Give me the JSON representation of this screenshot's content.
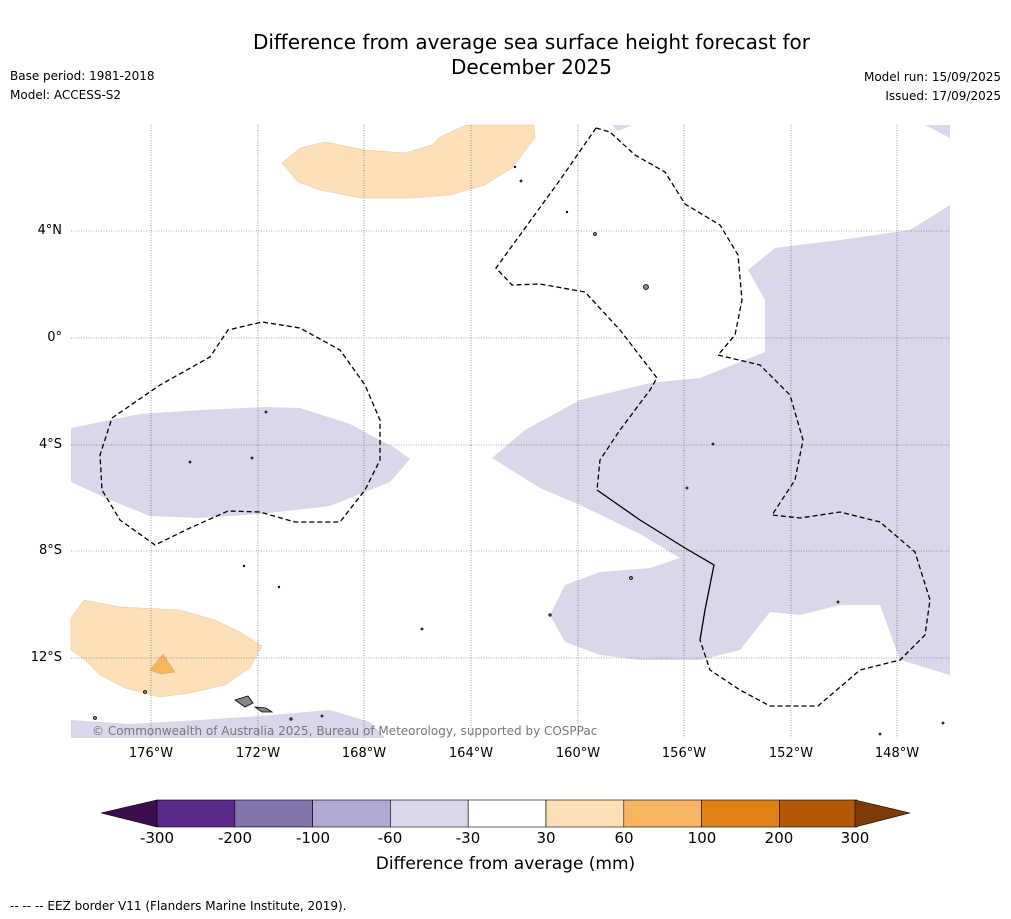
{
  "title_line1": "Difference from average sea surface height forecast for",
  "title_line2": "December 2025",
  "base_period": "Base period: 1981-2018",
  "model": "Model: ACCESS-S2",
  "model_run": "Model run: 15/09/2025",
  "issued": "Issued: 17/09/2025",
  "lat_labels": [
    "4°N",
    "0°",
    "4°S",
    "8°S",
    "12°S"
  ],
  "lon_labels": [
    "176°W",
    "172°W",
    "168°W",
    "164°W",
    "160°W",
    "156°W",
    "152°W",
    "148°W"
  ],
  "copyright": "© Commonwealth of Australia 2025, Bureau of Meteorology, supported by COSPPac",
  "colorbar": {
    "title": "Difference from average (mm)",
    "ticks": [
      "-300",
      "-200",
      "-100",
      "-60",
      "-30",
      "30",
      "60",
      "100",
      "200",
      "300"
    ],
    "colors": [
      "#3b0f4f",
      "#5a2a8a",
      "#8273ad",
      "#b1a9d1",
      "#d8d8ea",
      "#ffffff",
      "#fde0b8",
      "#f7b562",
      "#e08214",
      "#b35806",
      "#7f3b08"
    ]
  },
  "footnote": "--  --  -- EEZ border V11 (Flanders Marine Institute, 2019)."
}
